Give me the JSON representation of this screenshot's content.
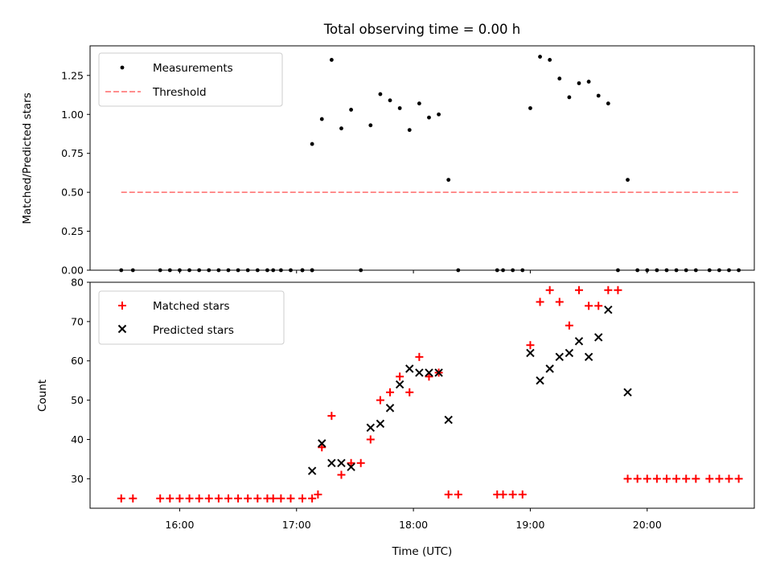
{
  "chart_data": [
    {
      "type": "scatter",
      "title": "Total observing time = 0.00 h",
      "xlabel": "",
      "ylabel": "Matched/Predicted stars",
      "xlim": [
        "15:14",
        "20:55"
      ],
      "ylim": [
        0,
        1.44
      ],
      "yticks": [
        0.0,
        0.25,
        0.5,
        0.75,
        1.0,
        1.25
      ],
      "ytick_labels": [
        "0.00",
        "0.25",
        "0.50",
        "0.75",
        "1.00",
        "1.25"
      ],
      "legend_position": "upper-left",
      "series": [
        {
          "name": "Measurements",
          "marker": "dot",
          "color": "#000000",
          "points": [
            [
              "15:30",
              0.0
            ],
            [
              "15:36",
              0.0
            ],
            [
              "15:50",
              0.0
            ],
            [
              "15:55",
              0.0
            ],
            [
              "16:00",
              0.0
            ],
            [
              "16:05",
              0.0
            ],
            [
              "16:10",
              0.0
            ],
            [
              "16:15",
              0.0
            ],
            [
              "16:20",
              0.0
            ],
            [
              "16:25",
              0.0
            ],
            [
              "16:30",
              0.0
            ],
            [
              "16:35",
              0.0
            ],
            [
              "16:40",
              0.0
            ],
            [
              "16:45",
              0.0
            ],
            [
              "16:48",
              0.0
            ],
            [
              "16:52",
              0.0
            ],
            [
              "16:57",
              0.0
            ],
            [
              "17:03",
              0.0
            ],
            [
              "17:08",
              0.0
            ],
            [
              "17:03",
              0.0
            ],
            [
              "17:08",
              0.0
            ],
            [
              "17:08",
              0.81
            ],
            [
              "17:13",
              0.97
            ],
            [
              "17:18",
              1.35
            ],
            [
              "17:23",
              0.91
            ],
            [
              "17:28",
              1.03
            ],
            [
              "17:33",
              0.0
            ],
            [
              "17:38",
              0.93
            ],
            [
              "17:43",
              1.13
            ],
            [
              "17:48",
              1.09
            ],
            [
              "17:53",
              1.04
            ],
            [
              "17:58",
              0.9
            ],
            [
              "18:03",
              1.07
            ],
            [
              "18:08",
              0.98
            ],
            [
              "18:13",
              1.0
            ],
            [
              "18:18",
              0.58
            ],
            [
              "18:23",
              0.0
            ],
            [
              "18:43",
              0.0
            ],
            [
              "18:46",
              0.0
            ],
            [
              "18:51",
              0.0
            ],
            [
              "18:56",
              0.0
            ],
            [
              "19:00",
              1.04
            ],
            [
              "19:05",
              1.37
            ],
            [
              "19:10",
              1.35
            ],
            [
              "19:15",
              1.23
            ],
            [
              "19:20",
              1.11
            ],
            [
              "19:25",
              1.2
            ],
            [
              "19:30",
              1.21
            ],
            [
              "19:35",
              1.12
            ],
            [
              "19:40",
              1.07
            ],
            [
              "19:45",
              0.0
            ],
            [
              "19:50",
              0.58
            ],
            [
              "19:55",
              0.0
            ],
            [
              "20:00",
              0.0
            ],
            [
              "20:05",
              0.0
            ],
            [
              "20:10",
              0.0
            ],
            [
              "20:15",
              0.0
            ],
            [
              "20:20",
              0.0
            ],
            [
              "20:25",
              0.0
            ],
            [
              "20:32",
              0.0
            ],
            [
              "20:37",
              0.0
            ],
            [
              "20:42",
              0.0
            ],
            [
              "20:47",
              0.0
            ]
          ]
        },
        {
          "name": "Threshold",
          "marker": "dashed-line",
          "color": "#ff7f7f",
          "points": [
            [
              "15:30",
              0.5
            ],
            [
              "20:47",
              0.5
            ]
          ]
        }
      ]
    },
    {
      "type": "scatter",
      "title": "",
      "xlabel": "Time (UTC)",
      "ylabel": "Count",
      "xlim": [
        "15:14",
        "20:55"
      ],
      "ylim": [
        22.5,
        80
      ],
      "yticks": [
        30,
        40,
        50,
        60,
        70,
        80
      ],
      "ytick_labels": [
        "30",
        "40",
        "50",
        "60",
        "70",
        "80"
      ],
      "xticks": [
        "16:00",
        "17:00",
        "18:00",
        "19:00",
        "20:00"
      ],
      "xtick_labels": [
        "16:00",
        "17:00",
        "18:00",
        "19:00",
        "20:00"
      ],
      "legend_position": "upper-left",
      "series": [
        {
          "name": "Matched stars",
          "marker": "plus",
          "color": "#ff0000",
          "points": [
            [
              "15:30",
              25
            ],
            [
              "15:36",
              25
            ],
            [
              "15:50",
              25
            ],
            [
              "15:55",
              25
            ],
            [
              "16:00",
              25
            ],
            [
              "16:05",
              25
            ],
            [
              "16:10",
              25
            ],
            [
              "16:15",
              25
            ],
            [
              "16:20",
              25
            ],
            [
              "16:25",
              25
            ],
            [
              "16:30",
              25
            ],
            [
              "16:35",
              25
            ],
            [
              "16:40",
              25
            ],
            [
              "16:45",
              25
            ],
            [
              "16:48",
              25
            ],
            [
              "16:52",
              25
            ],
            [
              "16:57",
              25
            ],
            [
              "17:03",
              25
            ],
            [
              "17:08",
              25
            ],
            [
              "17:11",
              26
            ],
            [
              "17:13",
              38
            ],
            [
              "17:18",
              46
            ],
            [
              "17:23",
              31
            ],
            [
              "17:28",
              34
            ],
            [
              "17:33",
              34
            ],
            [
              "17:38",
              40
            ],
            [
              "17:43",
              50
            ],
            [
              "17:48",
              52
            ],
            [
              "17:53",
              56
            ],
            [
              "17:58",
              52
            ],
            [
              "18:03",
              61
            ],
            [
              "18:08",
              56
            ],
            [
              "18:13",
              57
            ],
            [
              "18:18",
              26
            ],
            [
              "18:23",
              26
            ],
            [
              "18:43",
              26
            ],
            [
              "18:46",
              26
            ],
            [
              "18:51",
              26
            ],
            [
              "18:56",
              26
            ],
            [
              "19:00",
              64
            ],
            [
              "19:05",
              75
            ],
            [
              "19:10",
              78
            ],
            [
              "19:15",
              75
            ],
            [
              "19:20",
              69
            ],
            [
              "19:25",
              78
            ],
            [
              "19:30",
              74
            ],
            [
              "19:35",
              74
            ],
            [
              "19:40",
              78
            ],
            [
              "19:45",
              78
            ],
            [
              "19:50",
              30
            ],
            [
              "19:55",
              30
            ],
            [
              "20:00",
              30
            ],
            [
              "20:05",
              30
            ],
            [
              "20:10",
              30
            ],
            [
              "20:15",
              30
            ],
            [
              "20:20",
              30
            ],
            [
              "20:25",
              30
            ],
            [
              "20:32",
              30
            ],
            [
              "20:37",
              30
            ],
            [
              "20:42",
              30
            ],
            [
              "20:47",
              30
            ]
          ]
        },
        {
          "name": "Predicted stars",
          "marker": "x",
          "color": "#000000",
          "points": [
            [
              "17:08",
              32
            ],
            [
              "17:13",
              39
            ],
            [
              "17:18",
              34
            ],
            [
              "17:23",
              34
            ],
            [
              "17:28",
              33
            ],
            [
              "17:38",
              43
            ],
            [
              "17:43",
              44
            ],
            [
              "17:48",
              48
            ],
            [
              "17:53",
              54
            ],
            [
              "17:58",
              58
            ],
            [
              "18:03",
              57
            ],
            [
              "18:08",
              57
            ],
            [
              "18:13",
              57
            ],
            [
              "18:18",
              45
            ],
            [
              "19:00",
              62
            ],
            [
              "19:05",
              55
            ],
            [
              "19:10",
              58
            ],
            [
              "19:15",
              61
            ],
            [
              "19:20",
              62
            ],
            [
              "19:25",
              65
            ],
            [
              "19:30",
              61
            ],
            [
              "19:35",
              66
            ],
            [
              "19:40",
              73
            ],
            [
              "19:50",
              52
            ]
          ]
        }
      ]
    }
  ],
  "colors": {
    "matched": "#ff0000",
    "predicted": "#000000",
    "threshold": "#ff7f7f"
  }
}
